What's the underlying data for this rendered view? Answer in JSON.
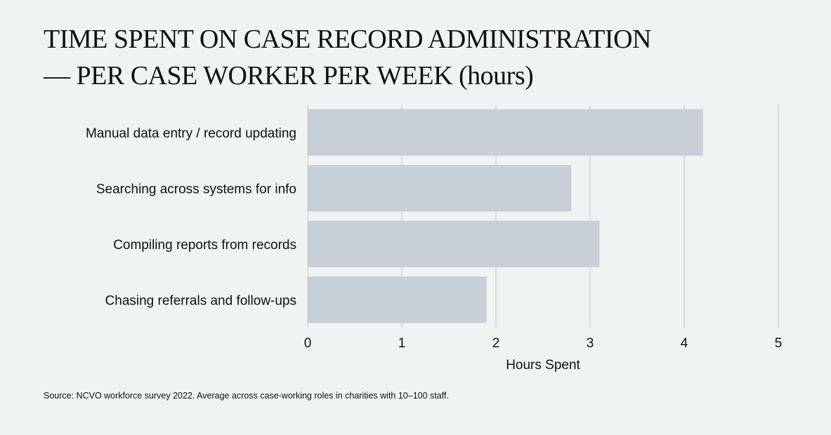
{
  "title_line1": "TIME SPENT ON CASE RECORD ADMINISTRATION",
  "title_line2": "— PER CASE WORKER PER WEEK (hours)",
  "source": "Source: NCVO workforce survey 2022. Average across case-working roles in charities with 10–100 staff.",
  "colors": {
    "bar": "#c8cfd6",
    "grid": "#d4d8d8",
    "background": "#eff4f3",
    "text": "#111111"
  },
  "chart_data": {
    "type": "bar",
    "orientation": "horizontal",
    "categories": [
      "Manual data entry / record updating",
      "Searching across systems for info",
      "Compiling reports from records",
      "Chasing referrals and follow-ups"
    ],
    "values": [
      4.2,
      2.8,
      3.1,
      1.9
    ],
    "xlabel": "Hours Spent",
    "ylabel": "",
    "xlim": [
      0,
      5
    ],
    "xticks": [
      0,
      1,
      2,
      3,
      4,
      5
    ],
    "grid": "vertical"
  }
}
